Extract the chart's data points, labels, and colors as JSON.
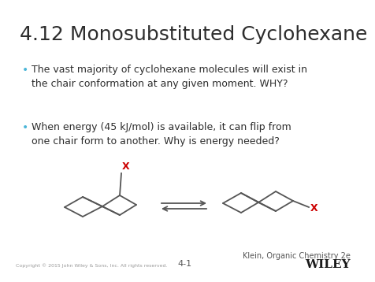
{
  "title": "4.12 Monosubstituted Cyclohexane",
  "bullet1": "The vast majority of cyclohexane molecules will exist in\nthe chair conformation at any given moment. WHY?",
  "bullet2": "When energy (45 kJ/mol) is available, it can flip from\none chair form to another. Why is energy needed?",
  "footer_left": "Copyright © 2015 John Wiley & Sons, Inc. All rights reserved.",
  "footer_center": "4-1",
  "footer_right": "Klein, Organic Chemistry 2e",
  "wiley": "WILEY",
  "bg_color": "#ffffff",
  "title_color": "#2d2d2d",
  "bullet_color": "#2d2d2d",
  "bullet_dot_color": "#4ab5d8",
  "x_label_color": "#cc0000",
  "chair_line_color": "#555555",
  "arrow_color": "#555555"
}
